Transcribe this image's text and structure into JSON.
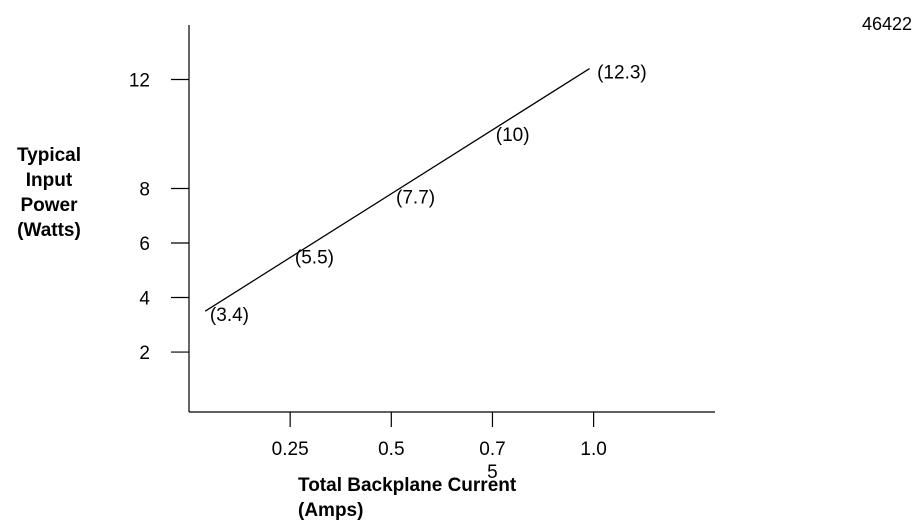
{
  "figure_id": "46422",
  "chart_data": {
    "type": "line",
    "ylabel": "Typical\nInput\nPower\n(Watts)",
    "xlabel": "Total Backplane  Current\n(Amps)",
    "x_ticks": [
      {
        "value": 0.25,
        "label": "0.25"
      },
      {
        "value": 0.5,
        "label": "0.5"
      },
      {
        "value": 0.75,
        "label": "0.7\n5"
      },
      {
        "value": 1.0,
        "label": "1.0"
      }
    ],
    "y_ticks": [
      {
        "value": 2,
        "label": "2"
      },
      {
        "value": 4,
        "label": "4"
      },
      {
        "value": 6,
        "label": "6"
      },
      {
        "value": 8,
        "label": "8"
      },
      {
        "value": 12,
        "label": "12"
      }
    ],
    "xlim": [
      0,
      1.3
    ],
    "ylim": [
      -0.2,
      14
    ],
    "series": [
      {
        "x": [
          0.04,
          0.99
        ],
        "y": [
          3.5,
          12.4
        ],
        "color": "#000000"
      }
    ],
    "annotations": [
      {
        "x": 0.1,
        "y": 3.4,
        "label": "(3.4)"
      },
      {
        "x": 0.31,
        "y": 5.5,
        "label": "(5.5)"
      },
      {
        "x": 0.56,
        "y": 7.7,
        "label": "(7.7)"
      },
      {
        "x": 0.8,
        "y": 10,
        "label": "(10)"
      },
      {
        "x": 1.07,
        "y": 12.3,
        "label": "(12.3)"
      }
    ]
  }
}
